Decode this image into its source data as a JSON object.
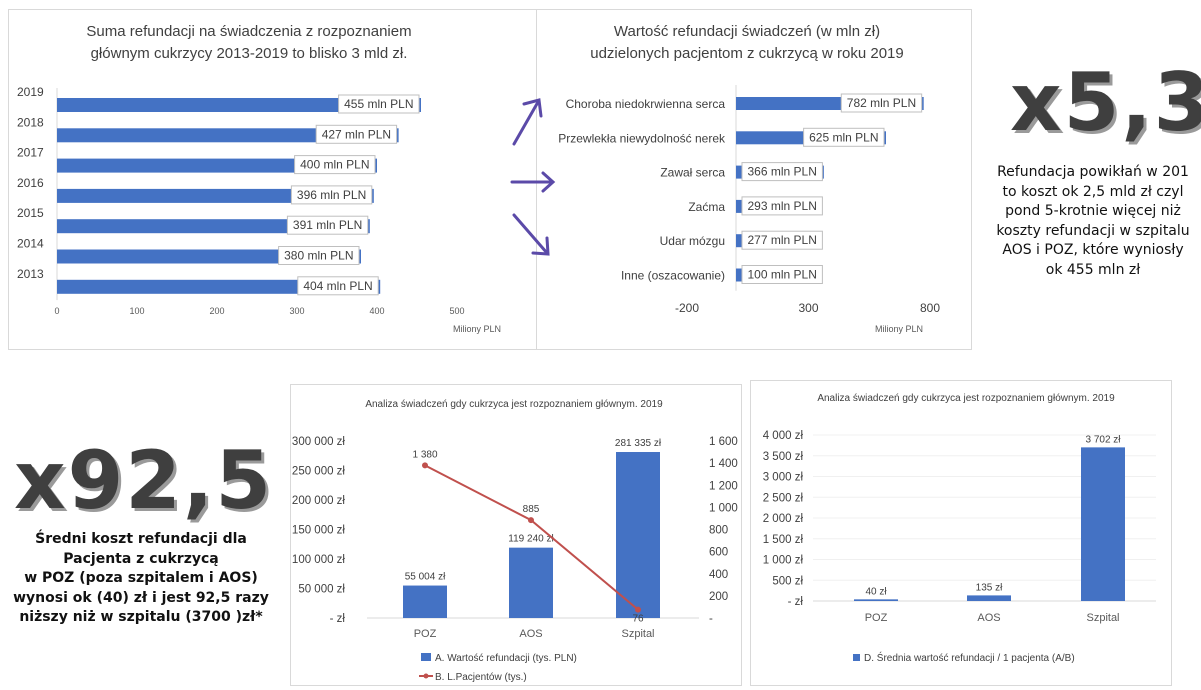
{
  "colors": {
    "bar": "#4472C4",
    "line": "#C0504D",
    "arrow": "#5b4aa8",
    "label_border": "#bfbfbf",
    "axis": "#d9d9d9"
  },
  "chart_data": [
    {
      "id": "years",
      "type": "bar",
      "orientation": "horizontal",
      "title": [
        "Suma refundacji na świadczenia z rozpoznaniem",
        "głównym cukrzycy 2013-2019 to blisko 3 mld zł."
      ],
      "categories": [
        "2019",
        "2018",
        "2017",
        "2016",
        "2015",
        "2014",
        "2013"
      ],
      "values": [
        455,
        427,
        400,
        396,
        391,
        380,
        404
      ],
      "data_labels": [
        "455 mln PLN",
        "427 mln PLN",
        "400 mln PLN",
        "396 mln PLN",
        "391 mln PLN",
        "380 mln PLN",
        "404 mln PLN"
      ],
      "xticks": [
        0,
        100,
        200,
        300,
        400,
        500
      ],
      "xlim": [
        0,
        500
      ],
      "xlabel": "Miliony PLN"
    },
    {
      "id": "diseases",
      "type": "bar",
      "orientation": "horizontal",
      "title": [
        "Wartość refundacji świadczeń (w mln zł)",
        "udzielonych pacjentom z cukrzycą w roku 2019"
      ],
      "categories": [
        "Choroba niedokrwienna serca",
        "Przewlekła niewydolność nerek",
        "Zawał serca",
        "Zaćma",
        "Udar mózgu",
        "Inne (oszacowanie)"
      ],
      "values": [
        782,
        625,
        366,
        293,
        277,
        100
      ],
      "data_labels": [
        "782 mln PLN",
        "625 mln PLN",
        "366 mln PLN",
        "293 mln PLN",
        "277 mln PLN",
        "100 mln PLN"
      ],
      "xticks": [
        -200,
        300,
        800
      ],
      "xlim": [
        -200,
        800
      ],
      "xlabel": "Miliony PLN"
    },
    {
      "id": "analysis",
      "type": "bar",
      "title": "Analiza świadczeń gdy cukrzyca jest rozpoznaniem głównym. 2019",
      "categories": [
        "POZ",
        "AOS",
        "Szpital"
      ],
      "series": [
        {
          "name": "A. Wartość refundacji (tys. PLN)",
          "type": "bar",
          "values": [
            55004,
            119240,
            281335
          ],
          "labels": [
            "55 004 zł",
            "119 240 zł",
            "281 335 zł"
          ]
        },
        {
          "name": "B. L.Pacjentów (tys.)",
          "type": "line",
          "values": [
            1380,
            885,
            76
          ],
          "labels": [
            "1 380",
            "885",
            "76"
          ]
        }
      ],
      "yticks": [
        "300 000 zł",
        "250 000 zł",
        "200 000 zł",
        "150 000 zł",
        "100 000 zł",
        "50 000 zł",
        "-   zł"
      ],
      "ylim": [
        0,
        300000
      ],
      "y2ticks": [
        "1 600",
        "1 400",
        "1 200",
        "1 000",
        "800",
        "600",
        "400",
        "200",
        "-"
      ],
      "y2lim": [
        0,
        1600
      ]
    },
    {
      "id": "avg",
      "type": "bar",
      "title": "Analiza świadczeń gdy cukrzyca jest rozpoznaniem głównym. 2019",
      "categories": [
        "POZ",
        "AOS",
        "Szpital"
      ],
      "series": [
        {
          "name": "D. Średnia wartość refundacji / 1 pacjenta (A/B)",
          "values": [
            40,
            135,
            3702
          ],
          "labels": [
            "40 zł",
            "135 zł",
            "3 702 zł"
          ]
        }
      ],
      "yticks": [
        "4 000 zł",
        "3 500 zł",
        "3 000 zł",
        "2 500 zł",
        "2 000 zł",
        "1 500 zł",
        "1 000 zł",
        "500 zł",
        "-   zł"
      ],
      "ylim": [
        0,
        4000
      ]
    }
  ],
  "callouts": {
    "top": {
      "big": "x5,3",
      "lines": [
        "Refundacja powikłań w 201",
        "to koszt ok 2,5 mld zł  czyl",
        "pond 5-krotnie więcej niż",
        "koszty refundacji w szpitalu",
        "AOS i POZ, które wyniosły",
        "ok 455 mln zł"
      ]
    },
    "bottom": {
      "big": "x92,5",
      "lines": [
        "Średni koszt refundacji dla",
        "Pacjenta z cukrzycą",
        "w POZ (poza szpitalem i AOS)",
        "wynosi ok (40) zł i jest 92,5 razy",
        "niższy niż w szpitalu (3700 )zł*"
      ]
    }
  }
}
